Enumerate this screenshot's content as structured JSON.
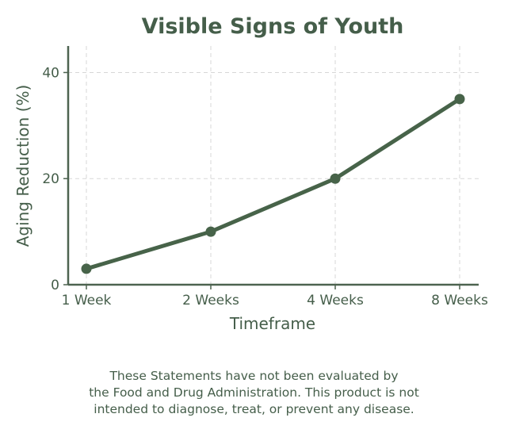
{
  "colors": {
    "text": "#455e4a",
    "line": "#476349",
    "axis": "#4d6350",
    "grid": "#d7d7d7"
  },
  "chart_data": {
    "type": "line",
    "title": "Visible Signs of Youth",
    "xlabel": "Timeframe",
    "ylabel": "Aging Reduction (%)",
    "categories": [
      "1 Week",
      "2 Weeks",
      "4 Weeks",
      "8 Weeks"
    ],
    "values": [
      3,
      10,
      20,
      35
    ],
    "ylim": [
      0,
      45
    ],
    "yticks": [
      0,
      20,
      40
    ],
    "grid": true,
    "markers": true
  },
  "disclaimer": {
    "lines": [
      "These Statements have not been evaluated by",
      "the Food and Drug Administration. This product is not",
      "intended to diagnose, treat, or prevent any disease."
    ]
  }
}
